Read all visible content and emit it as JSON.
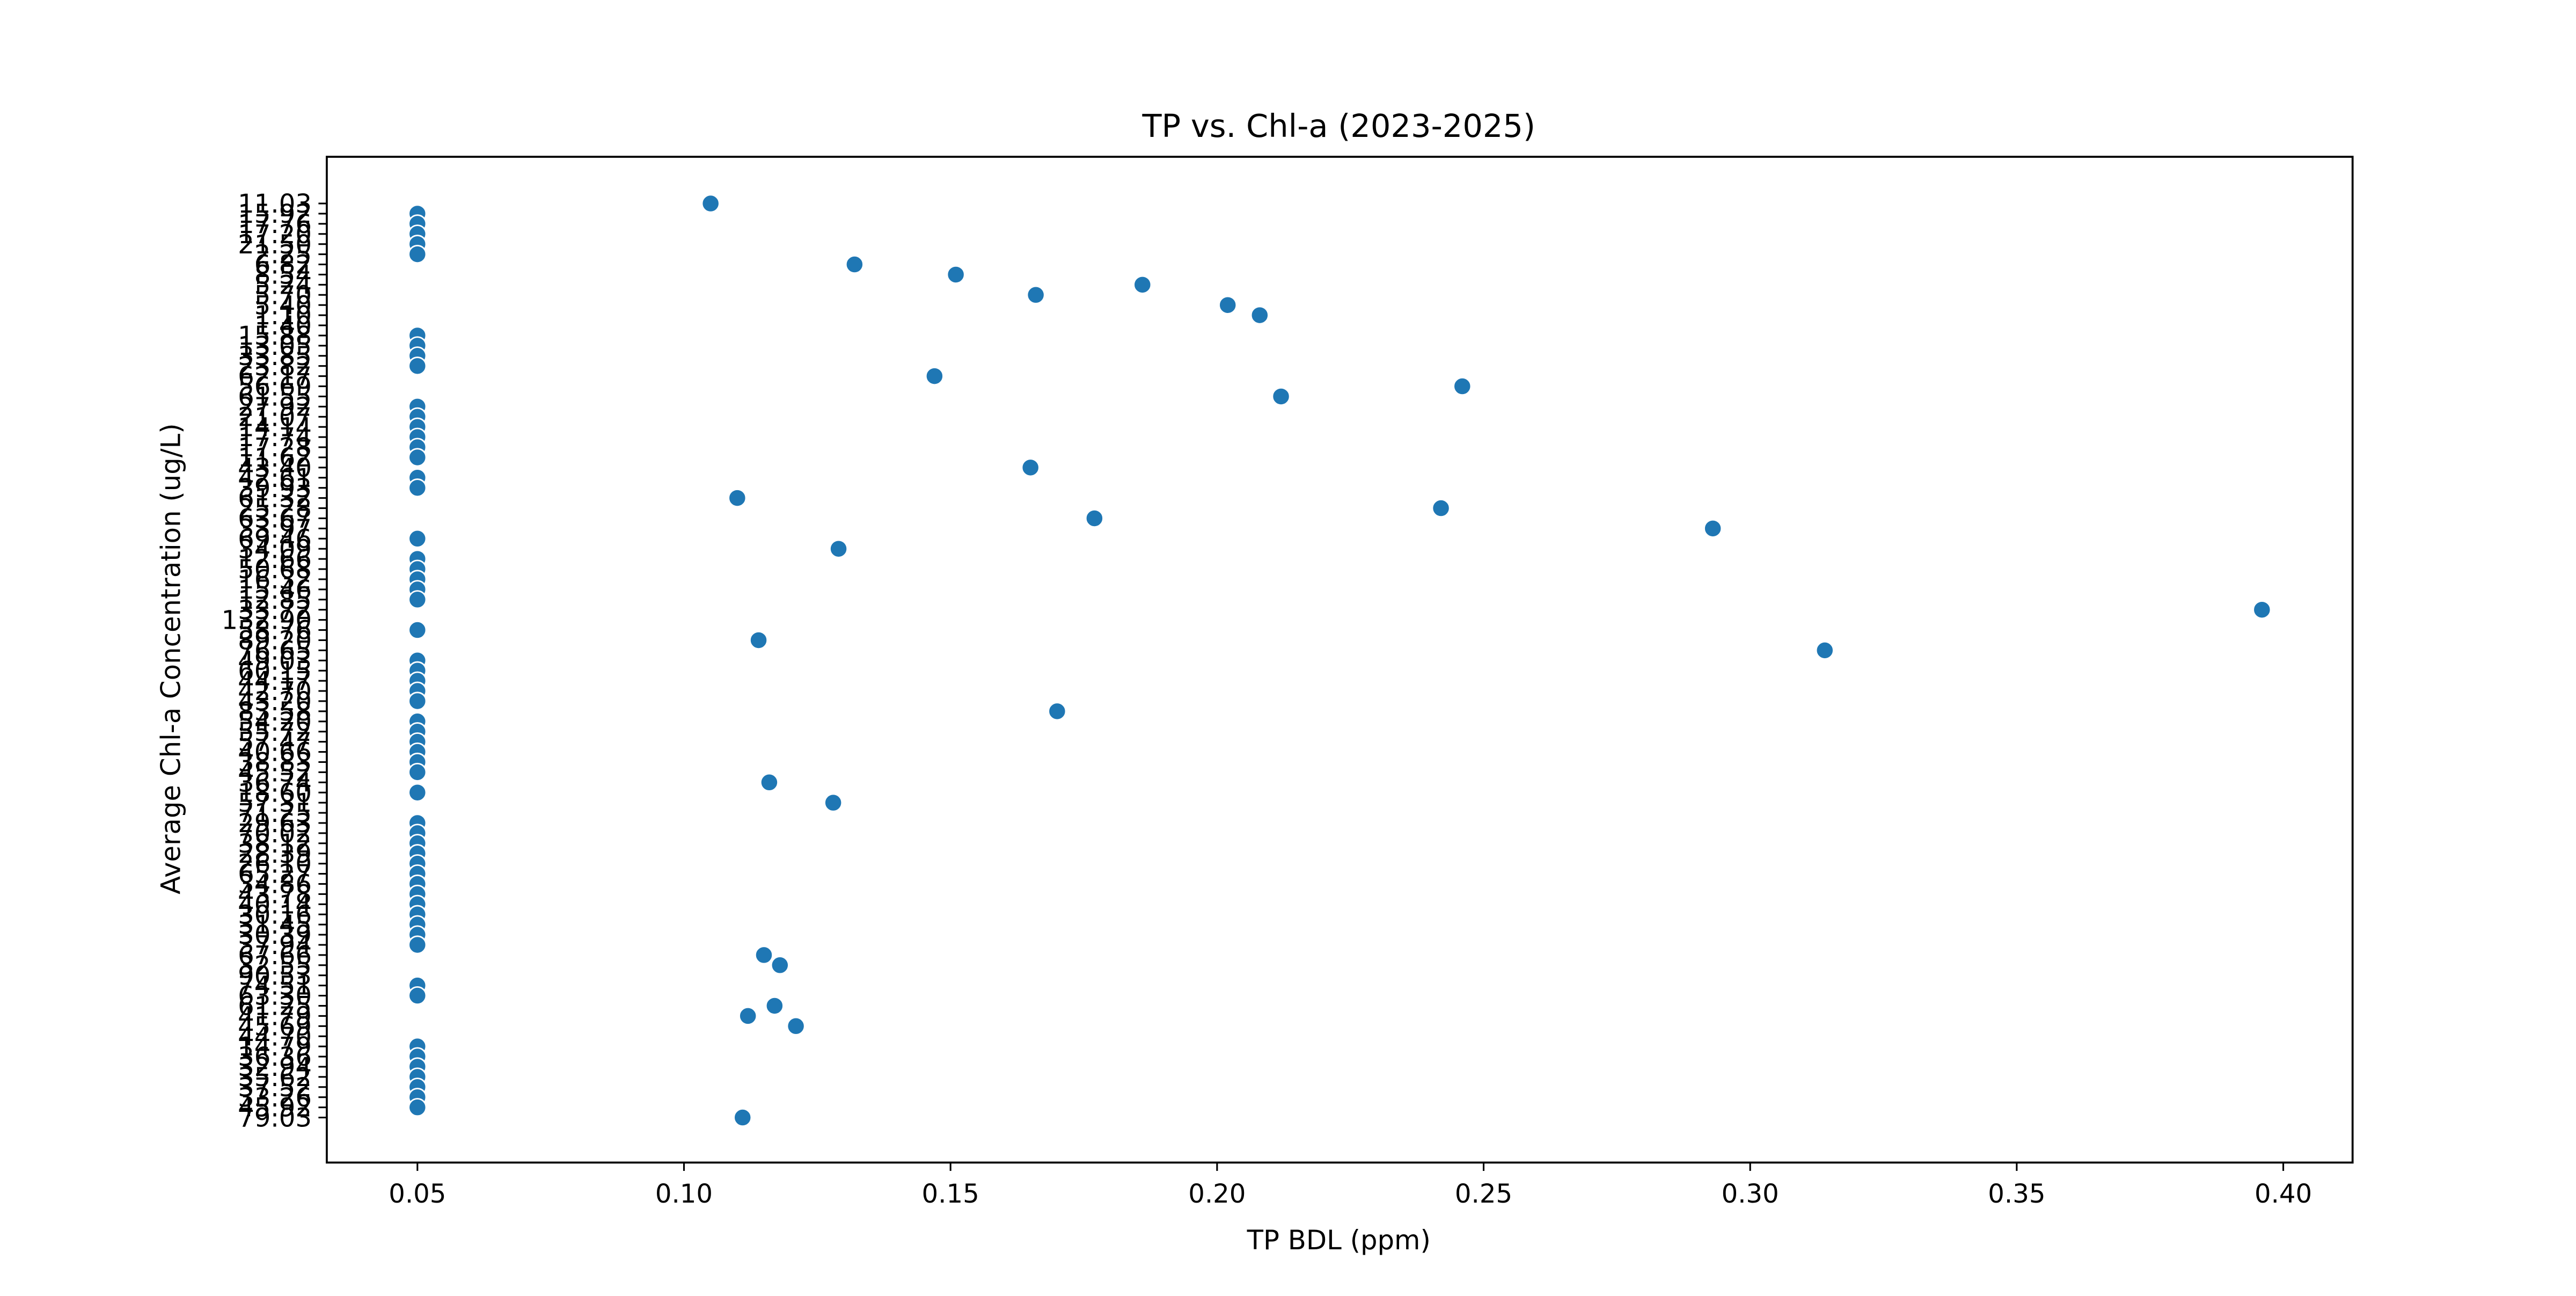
{
  "chart_data": {
    "type": "scatter",
    "title": "TP vs. Chl-a (2023-2025)",
    "xlabel": "TP BDL (ppm)",
    "ylabel": "Average Chl-a Concentration (ug/L)",
    "xlim": [
      0.033,
      0.413
    ],
    "x_ticks": [
      "0.05",
      "0.10",
      "0.15",
      "0.20",
      "0.25",
      "0.30",
      "0.35",
      "0.40"
    ],
    "y_axis_kind": "categorical",
    "y_categories": [
      "11.03",
      "15.92",
      "17.76",
      "17.20",
      "21.50",
      "2.25",
      "6.82",
      "8.54",
      "5.24",
      "5.70",
      "5.40",
      "1.10",
      "1.40",
      "15.88",
      "13.05",
      "33.85",
      "23.82",
      "62.17",
      "56.69",
      "61.55",
      "27.92",
      "21.07",
      "14.14",
      "17.74",
      "17.28",
      "11.62",
      "43.40",
      "42.61",
      "39.93",
      "61.32",
      "25.28",
      "63.67",
      "33.97",
      "69.46",
      "34.09",
      "12.66",
      "50.68",
      "16.32",
      "15.46",
      "12.85",
      "33.72",
      "132.90",
      "58.76",
      "89.20",
      "76.65",
      "49.03",
      "60.15",
      "44.17",
      "42.70",
      "43.20",
      "83.58",
      "54.20",
      "55.72",
      "57.47",
      "40.66",
      "38.83",
      "45.52",
      "36.74",
      "18.60",
      "57.31",
      "71.25",
      "29.63",
      "70.02",
      "38.12",
      "28.39",
      "26.10",
      "65.27",
      "34.86",
      "43.78",
      "40.14",
      "30.16",
      "31.45",
      "30.39",
      "37.94",
      "67.66",
      "32.55",
      "90.53",
      "74.51",
      "63.30",
      "61.25",
      "41.79",
      "45.69",
      "44.70",
      "14.79",
      "36.36",
      "32.94",
      "35.62",
      "37.52",
      "33.26",
      "45.92",
      "79.03"
    ],
    "points": [
      {
        "x": 0.105,
        "y": "11.03"
      },
      {
        "x": 0.05,
        "y": "15.92"
      },
      {
        "x": 0.05,
        "y": "17.76"
      },
      {
        "x": 0.05,
        "y": "17.20"
      },
      {
        "x": 0.05,
        "y": "21.50"
      },
      {
        "x": 0.05,
        "y": "2.25"
      },
      {
        "x": 0.132,
        "y": "6.82"
      },
      {
        "x": 0.151,
        "y": "8.54"
      },
      {
        "x": 0.186,
        "y": "5.24"
      },
      {
        "x": 0.166,
        "y": "5.70"
      },
      {
        "x": 0.202,
        "y": "5.40"
      },
      {
        "x": 0.208,
        "y": "1.10"
      },
      {
        "x": 0.05,
        "y": "15.88"
      },
      {
        "x": 0.05,
        "y": "13.05"
      },
      {
        "x": 0.05,
        "y": "33.85"
      },
      {
        "x": 0.05,
        "y": "23.82"
      },
      {
        "x": 0.147,
        "y": "62.17"
      },
      {
        "x": 0.246,
        "y": "56.69"
      },
      {
        "x": 0.212,
        "y": "61.55"
      },
      {
        "x": 0.05,
        "y": "27.92"
      },
      {
        "x": 0.05,
        "y": "21.07"
      },
      {
        "x": 0.05,
        "y": "14.14"
      },
      {
        "x": 0.05,
        "y": "17.74"
      },
      {
        "x": 0.05,
        "y": "17.28"
      },
      {
        "x": 0.05,
        "y": "11.62"
      },
      {
        "x": 0.165,
        "y": "43.40"
      },
      {
        "x": 0.05,
        "y": "42.61"
      },
      {
        "x": 0.05,
        "y": "39.93"
      },
      {
        "x": 0.11,
        "y": "61.32"
      },
      {
        "x": 0.242,
        "y": "25.28"
      },
      {
        "x": 0.177,
        "y": "63.67"
      },
      {
        "x": 0.293,
        "y": "33.97"
      },
      {
        "x": 0.05,
        "y": "69.46"
      },
      {
        "x": 0.129,
        "y": "34.09"
      },
      {
        "x": 0.05,
        "y": "12.66"
      },
      {
        "x": 0.05,
        "y": "50.68"
      },
      {
        "x": 0.05,
        "y": "16.32"
      },
      {
        "x": 0.05,
        "y": "15.46"
      },
      {
        "x": 0.05,
        "y": "12.85"
      },
      {
        "x": 0.396,
        "y": "33.72"
      },
      {
        "x": 0.05,
        "y": "58.76"
      },
      {
        "x": 0.114,
        "y": "89.20"
      },
      {
        "x": 0.314,
        "y": "76.65"
      },
      {
        "x": 0.05,
        "y": "49.03"
      },
      {
        "x": 0.05,
        "y": "60.15"
      },
      {
        "x": 0.05,
        "y": "44.17"
      },
      {
        "x": 0.05,
        "y": "42.70"
      },
      {
        "x": 0.05,
        "y": "43.20"
      },
      {
        "x": 0.17,
        "y": "83.58"
      },
      {
        "x": 0.05,
        "y": "54.20"
      },
      {
        "x": 0.05,
        "y": "55.72"
      },
      {
        "x": 0.05,
        "y": "57.47"
      },
      {
        "x": 0.05,
        "y": "40.66"
      },
      {
        "x": 0.05,
        "y": "38.83"
      },
      {
        "x": 0.05,
        "y": "45.52"
      },
      {
        "x": 0.116,
        "y": "36.74"
      },
      {
        "x": 0.05,
        "y": "18.60"
      },
      {
        "x": 0.128,
        "y": "57.31"
      },
      {
        "x": 0.05,
        "y": "29.63"
      },
      {
        "x": 0.05,
        "y": "70.02"
      },
      {
        "x": 0.05,
        "y": "38.12"
      },
      {
        "x": 0.05,
        "y": "28.39"
      },
      {
        "x": 0.05,
        "y": "26.10"
      },
      {
        "x": 0.05,
        "y": "65.27"
      },
      {
        "x": 0.05,
        "y": "34.86"
      },
      {
        "x": 0.05,
        "y": "43.78"
      },
      {
        "x": 0.05,
        "y": "40.14"
      },
      {
        "x": 0.05,
        "y": "30.16"
      },
      {
        "x": 0.05,
        "y": "31.45"
      },
      {
        "x": 0.05,
        "y": "30.39"
      },
      {
        "x": 0.05,
        "y": "37.94"
      },
      {
        "x": 0.115,
        "y": "67.66"
      },
      {
        "x": 0.118,
        "y": "32.55"
      },
      {
        "x": 0.05,
        "y": "74.51"
      },
      {
        "x": 0.05,
        "y": "63.30"
      },
      {
        "x": 0.117,
        "y": "61.25"
      },
      {
        "x": 0.112,
        "y": "41.79"
      },
      {
        "x": 0.121,
        "y": "45.69"
      },
      {
        "x": 0.05,
        "y": "14.79"
      },
      {
        "x": 0.05,
        "y": "36.36"
      },
      {
        "x": 0.05,
        "y": "32.94"
      },
      {
        "x": 0.05,
        "y": "35.62"
      },
      {
        "x": 0.05,
        "y": "37.52"
      },
      {
        "x": 0.05,
        "y": "33.26"
      },
      {
        "x": 0.05,
        "y": "45.92"
      },
      {
        "x": 0.111,
        "y": "79.03"
      }
    ],
    "grid": false,
    "legend": "none"
  },
  "colors": {
    "marker": "#1f77b4",
    "marker_edge": "#ffffff",
    "axes": "#000000"
  }
}
